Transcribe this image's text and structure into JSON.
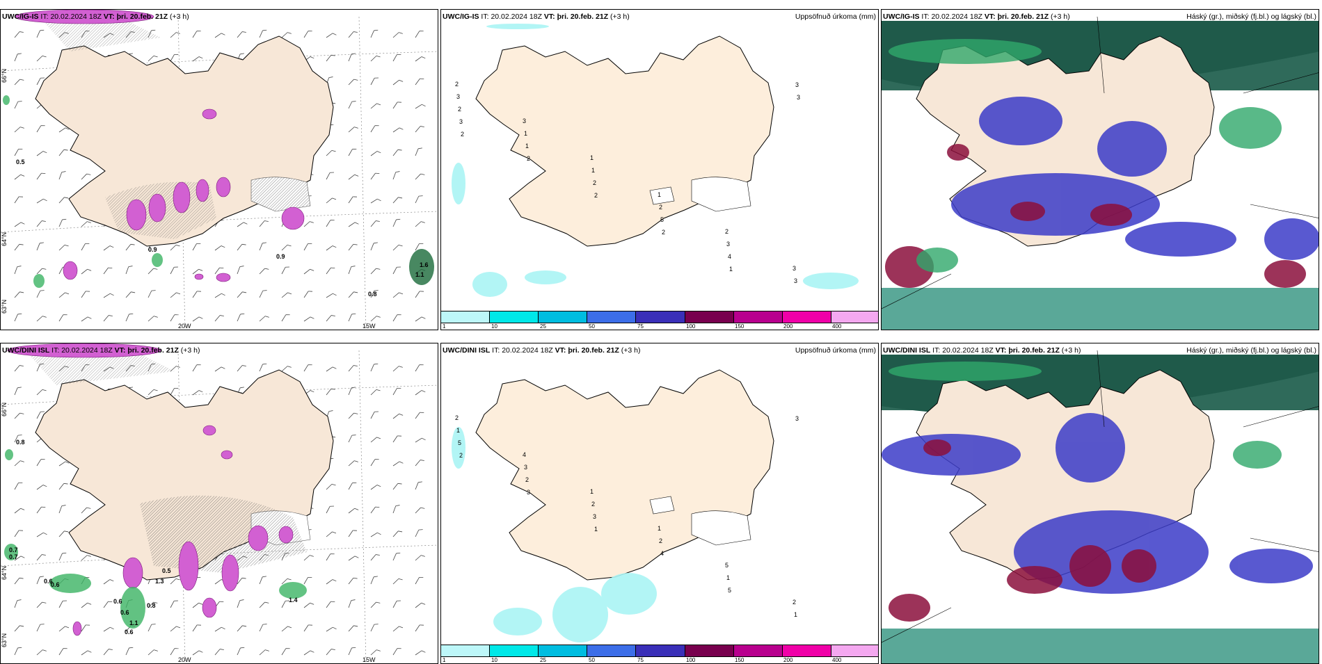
{
  "panels": [
    {
      "model": "UWC/IG-IS",
      "it_label": "IT:",
      "it_value": "20.02.2024 18Z",
      "vt_label": "VT:",
      "vt_value": "þri. 20.feb. 21Z",
      "offset": "(+3 h)",
      "right_title": ""
    },
    {
      "model": "UWC/IG-IS",
      "it_label": "IT:",
      "it_value": "20.02.2024 18Z",
      "vt_label": "VT:",
      "vt_value": "þri. 20.feb. 21Z",
      "offset": "(+3 h)",
      "right_title": "Uppsöfnuð úrkoma (mm)"
    },
    {
      "model": "UWC/IG-IS",
      "it_label": "IT:",
      "it_value": "20.02.2024 18Z",
      "vt_label": "VT:",
      "vt_value": "þri. 20.feb. 21Z",
      "offset": "(+3 h)",
      "right_title": "Háský (gr.), miðský (fj.bl.) og lágský (bl.)"
    },
    {
      "model": "UWC/DINI ISL",
      "it_label": "IT:",
      "it_value": "20.02.2024 18Z",
      "vt_label": "VT:",
      "vt_value": "þri. 20.feb. 21Z",
      "offset": "(+3 h)",
      "right_title": ""
    },
    {
      "model": "UWC/DINI ISL",
      "it_label": "IT:",
      "it_value": "20.02.2024 18Z",
      "vt_label": "VT:",
      "vt_value": "þri. 20.feb. 21Z",
      "offset": "(+3 h)",
      "right_title": "Uppsöfnuð úrkoma (mm)"
    },
    {
      "model": "UWC/DINI ISL",
      "it_label": "IT:",
      "it_value": "20.02.2024 18Z",
      "vt_label": "VT:",
      "vt_value": "þri. 20.feb. 21Z",
      "offset": "(+3 h)",
      "right_title": "Háský (gr.), miðský (fj.bl.) og lágský (bl.)"
    }
  ],
  "axis_labels": {
    "lat66": "66°N",
    "lat64": "64°N",
    "lat63": "63°N",
    "lon20": "20W",
    "lon15": "15W"
  },
  "precip_colorbar": {
    "labels": [
      "1",
      "10",
      "25",
      "50",
      "75",
      "100",
      "150",
      "200",
      "400"
    ],
    "colors": [
      "#bdf7f9",
      "#00e8e8",
      "#00bde0",
      "#3c6ee8",
      "#3a2fb8",
      "#78004e",
      "#b8008e",
      "#f000a8",
      "#f4a8f0"
    ]
  },
  "wind_top_values": [
    "0.5",
    "0.9",
    "0.9",
    "0.8",
    "1.1",
    "1.6"
  ],
  "wind_bottom_values": [
    "0.8",
    "0.7",
    "0.6",
    "0.6",
    "0.6",
    "0.6",
    "0.8",
    "1.3",
    "0.5",
    "1.1",
    "1.4",
    "0.6",
    "0.7"
  ],
  "precip_top_values": [
    "2",
    "3",
    "1",
    "1",
    "2",
    "3",
    "3",
    "1",
    "1",
    "2",
    "3",
    "3",
    "2",
    "1",
    "2",
    "5",
    "4",
    "3",
    "3",
    "2",
    "2",
    "2",
    "1",
    "3",
    "2"
  ],
  "precip_bottom_values": [
    "2",
    "4",
    "1",
    "1",
    "5",
    "2",
    "1",
    "3",
    "2",
    "2",
    "1",
    "1",
    "5",
    "2",
    "3",
    "4",
    "5",
    "3",
    "2",
    "3",
    "1"
  ],
  "colors": {
    "land": "#f7e7d7",
    "coast": "#000000",
    "pink": "#d260d2",
    "cloud_high": "#2fa86a",
    "cloud_mid": "#3c3cc8",
    "cloud_low": "#8b0f3c"
  }
}
